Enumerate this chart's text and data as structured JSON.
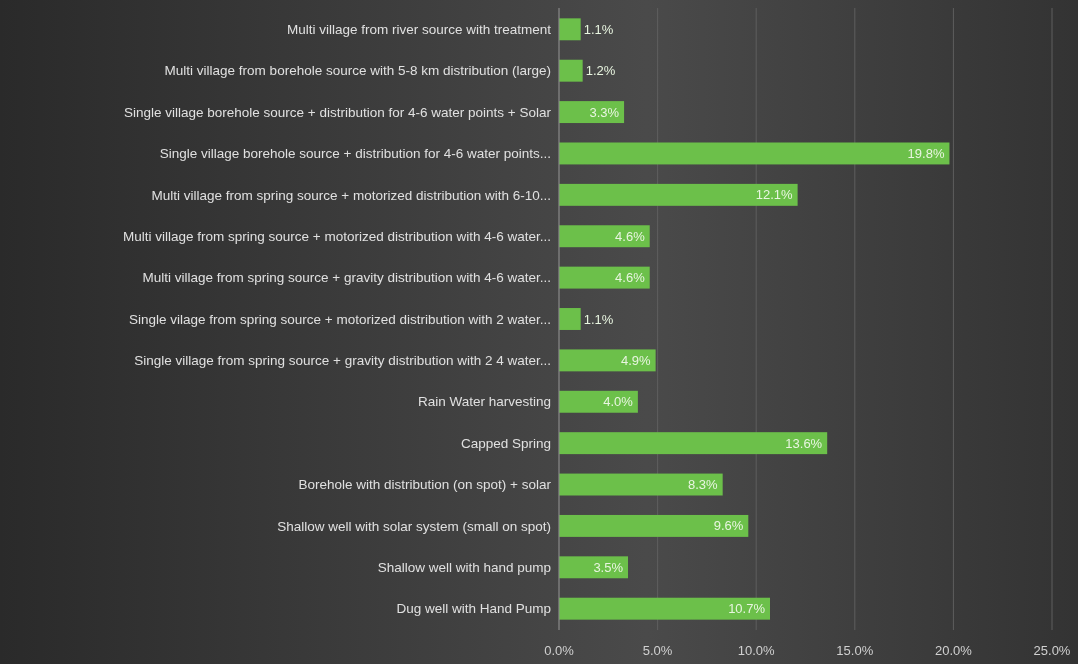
{
  "chart_data": {
    "type": "bar",
    "orientation": "horizontal",
    "categories": [
      "Multi village from river source with treatment",
      "Multi village from borehole source with 5-8 km distribution (large)",
      "Single village borehole source + distribution for 4-6 water points + Solar",
      "Single village borehole source + distribution for  4-6 water points...",
      "Multi village from spring source + motorized distribution with 6-10...",
      "Multi village from spring source + motorized distribution with 4-6 water...",
      "Multi village from spring source + gravity distribution with 4-6 water...",
      "Single vilage from spring source + motorized distribution with 2 water...",
      "Single village from spring source + gravity distribution with 2  4 water...",
      "Rain  Water  harvesting",
      "Capped Spring",
      "Borehole with distribution (on spot) + solar",
      "Shallow well with solar system (small on spot)",
      "Shallow well with hand pump",
      "Dug well with Hand Pump"
    ],
    "values": [
      1.1,
      1.2,
      3.3,
      19.8,
      12.1,
      4.6,
      4.6,
      1.1,
      4.9,
      4.0,
      13.6,
      8.3,
      9.6,
      3.5,
      10.7
    ],
    "value_labels": [
      "1.1%",
      "1.2%",
      "3.3%",
      "19.8%",
      "12.1%",
      "4.6%",
      "4.6%",
      "1.1%",
      "4.9%",
      "4.0%",
      "13.6%",
      "8.3%",
      "9.6%",
      "3.5%",
      "10.7%"
    ],
    "color": "#6cc04a",
    "xlim": [
      0,
      25
    ],
    "xticks": [
      {
        "value": 0,
        "label": "0.0%"
      },
      {
        "value": 5,
        "label": "5.0%"
      },
      {
        "value": 10,
        "label": "10.0%"
      },
      {
        "value": 15,
        "label": "15.0%"
      },
      {
        "value": 20,
        "label": "20.0%"
      },
      {
        "value": 25,
        "label": "25.0%"
      }
    ],
    "grid": "x"
  }
}
